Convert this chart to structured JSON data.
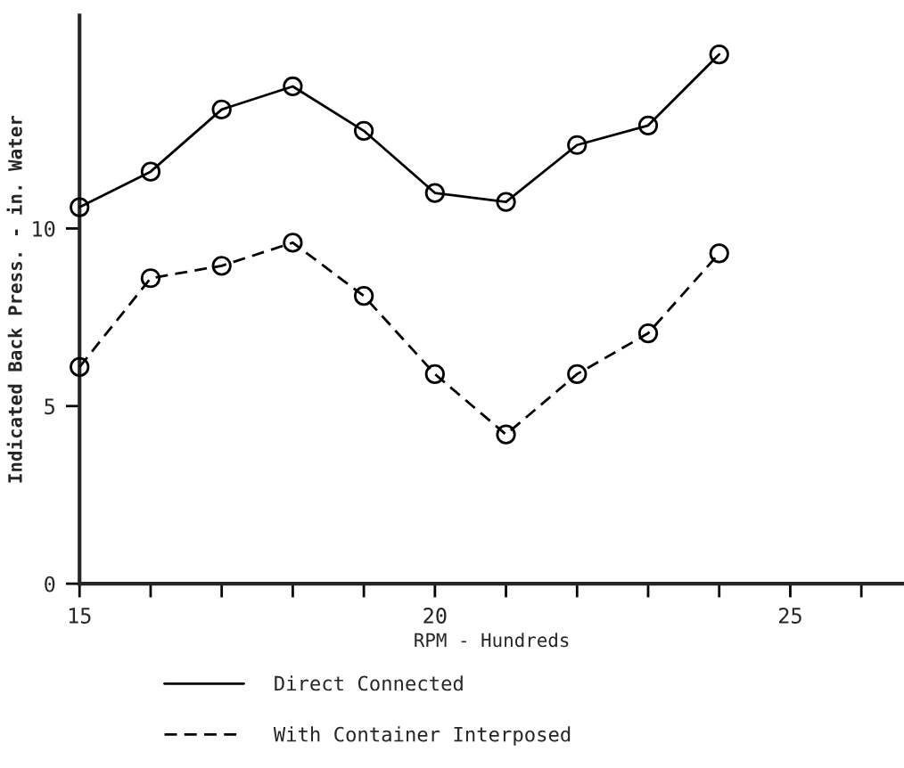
{
  "chart_data": {
    "type": "line",
    "xlabel": "RPM - Hundreds",
    "ylabel": "Indicated Back Press. - in. Water",
    "x": [
      15,
      16,
      17,
      18,
      19,
      20,
      21,
      22,
      23,
      24
    ],
    "series": [
      {
        "name": "Direct Connected",
        "color": "#000000",
        "line_style": "solid",
        "values": [
          10.6,
          11.6,
          13.35,
          14.0,
          12.75,
          11.0,
          10.75,
          12.35,
          12.9,
          14.9
        ]
      },
      {
        "name": "With Container Interposed",
        "color": "#000000",
        "line_style": "dashed",
        "values": [
          6.1,
          8.6,
          8.95,
          9.6,
          8.1,
          5.9,
          4.2,
          5.9,
          7.05,
          9.3
        ]
      }
    ],
    "xlim": [
      15,
      26.6
    ],
    "ylim": [
      0,
      16
    ],
    "xticks": [
      15,
      {
        "value": 16,
        "label": null
      },
      {
        "value": 17,
        "label": null
      },
      {
        "value": 18,
        "label": null
      },
      {
        "value": 19,
        "label": null
      },
      20,
      {
        "value": 21,
        "label": null
      },
      {
        "value": 22,
        "label": null
      },
      {
        "value": 23,
        "label": null
      },
      {
        "value": 24,
        "label": null
      },
      25,
      {
        "value": 26,
        "label": null
      }
    ],
    "yticks": [
      0,
      5,
      10
    ],
    "marker": "circle",
    "grid": false,
    "legend": "bottom"
  }
}
